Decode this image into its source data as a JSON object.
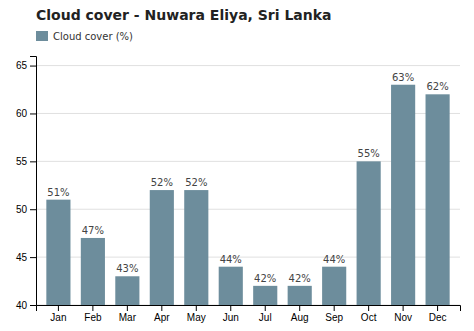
{
  "chart_data": {
    "type": "bar",
    "title": "Cloud cover - Nuwara Eliya, Sri Lanka",
    "categories": [
      "Jan",
      "Feb",
      "Mar",
      "Apr",
      "May",
      "Jun",
      "Jul",
      "Aug",
      "Sep",
      "Oct",
      "Nov",
      "Dec"
    ],
    "series": [
      {
        "name": "Cloud cover (%)",
        "color": "#6d8d9c",
        "values": [
          51,
          47,
          43,
          52,
          52,
          44,
          42,
          42,
          44,
          55,
          63,
          62
        ],
        "value_labels": [
          "51%",
          "47%",
          "43%",
          "52%",
          "52%",
          "44%",
          "42%",
          "42%",
          "44%",
          "55%",
          "63%",
          "62%"
        ]
      }
    ],
    "ylim": [
      40,
      66
    ],
    "yticks": [
      40,
      45,
      50,
      55,
      60,
      65
    ],
    "grid": true,
    "legend": "upper left",
    "data_labels": true
  }
}
